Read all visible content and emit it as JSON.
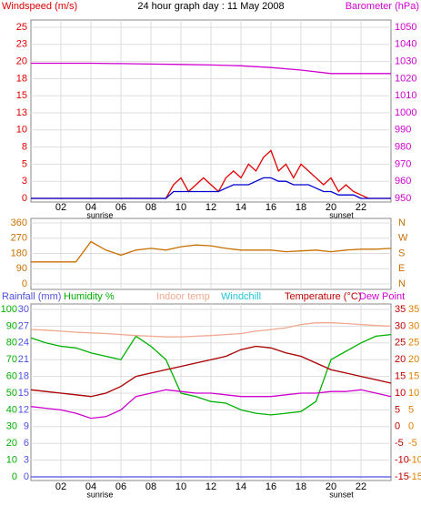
{
  "chart_data": [
    {
      "type": "line",
      "title": "24 hour graph day : 11 May 2008",
      "y_label": "Windspeed (m/s)",
      "y2_label": "Barometer (hPa)",
      "xlim": [
        0,
        24
      ],
      "xticks": [
        {
          "value": 2,
          "label": "02"
        },
        {
          "value": 4,
          "label": "04"
        },
        {
          "value": 6,
          "label": "06"
        },
        {
          "value": 8,
          "label": "08"
        },
        {
          "value": 10,
          "label": "10"
        },
        {
          "value": 12,
          "label": "12"
        },
        {
          "value": 14,
          "label": "14"
        },
        {
          "value": 16,
          "label": "16"
        },
        {
          "value": 18,
          "label": "18"
        },
        {
          "value": 20,
          "label": "20"
        },
        {
          "value": 22,
          "label": "22"
        }
      ],
      "ylim": [
        0,
        25
      ],
      "yticks": [
        0,
        {
          "value": 2.5,
          "label": "3"
        },
        5,
        {
          "value": 7.5,
          "label": "8"
        },
        10,
        {
          "value": 12.5,
          "label": "13"
        },
        15,
        {
          "value": 17.5,
          "label": "18"
        },
        20,
        {
          "value": 22.5,
          "label": "23"
        },
        25
      ],
      "y2lim": [
        950,
        1050
      ],
      "y2ticks": [
        950,
        960,
        970,
        980,
        990,
        1000,
        1010,
        1020,
        1030,
        1040,
        1050
      ],
      "grid": true,
      "annotations": [
        {
          "text": "sunrise",
          "x": 4.6
        },
        {
          "text": "sunset",
          "x": 20.7
        }
      ],
      "series": [
        {
          "color": "#e00000",
          "x": [
            0,
            0.5,
            1,
            1.5,
            2,
            2.5,
            3,
            3.5,
            4,
            4.5,
            5,
            5.5,
            6,
            6.5,
            7,
            7.5,
            8,
            8.5,
            9,
            9.5,
            10,
            10.5,
            11,
            11.5,
            12,
            12.5,
            13,
            13.5,
            14,
            14.5,
            15,
            15.5,
            16,
            16.5,
            17,
            17.5,
            18,
            18.5,
            19,
            19.5,
            20,
            20.5,
            21,
            21.5,
            22,
            22.5,
            23,
            23.5,
            24
          ],
          "values": [
            0,
            0,
            0,
            0,
            0,
            0,
            0,
            0,
            0,
            0,
            0,
            0,
            0,
            0,
            0,
            0,
            0,
            0,
            0,
            2,
            3,
            1,
            2,
            3,
            2,
            1,
            3,
            4,
            3,
            5,
            4,
            6,
            7,
            4,
            5,
            3,
            5,
            4,
            3,
            2,
            3,
            1,
            2,
            1,
            0.5,
            0,
            0,
            0,
            0
          ]
        },
        {
          "color": "#0000d0",
          "x": [
            0,
            0.5,
            1,
            1.5,
            2,
            2.5,
            3,
            3.5,
            4,
            4.5,
            5,
            5.5,
            6,
            6.5,
            7,
            7.5,
            8,
            8.5,
            9,
            9.5,
            10,
            10.5,
            11,
            11.5,
            12,
            12.5,
            13,
            13.5,
            14,
            14.5,
            15,
            15.5,
            16,
            16.5,
            17,
            17.5,
            18,
            18.5,
            19,
            19.5,
            20,
            20.5,
            21,
            21.5,
            22,
            22.5,
            23,
            23.5,
            24
          ],
          "values": [
            0,
            0,
            0,
            0,
            0,
            0,
            0,
            0,
            0,
            0,
            0,
            0,
            0,
            0,
            0,
            0,
            0,
            0,
            0,
            1,
            1,
            1,
            1,
            1,
            1,
            1,
            1.5,
            2,
            2,
            2,
            2.5,
            3,
            3,
            2.5,
            2.5,
            2,
            2,
            2,
            1.5,
            1,
            1,
            0.5,
            0.5,
            0.5,
            0,
            0,
            0,
            0,
            0
          ]
        },
        {
          "color": "#d000d0",
          "axis": "y2",
          "x": [
            0,
            2,
            4,
            6,
            8,
            10,
            12,
            14,
            16,
            18,
            20,
            22,
            24
          ],
          "values": [
            1029,
            1029,
            1029,
            1028.8,
            1028.5,
            1028.3,
            1028,
            1027.5,
            1026.5,
            1025,
            1023,
            1023,
            1023
          ]
        }
      ]
    },
    {
      "type": "line",
      "xlim": [
        0,
        24
      ],
      "ylim": [
        0,
        360
      ],
      "yticks": [
        0,
        90,
        180,
        270,
        360
      ],
      "y2lim": [
        0,
        360
      ],
      "y2ticks": [
        {
          "value": 0,
          "label": "N"
        },
        {
          "value": 90,
          "label": "E"
        },
        {
          "value": 180,
          "label": "S"
        },
        {
          "value": 270,
          "label": "W"
        },
        {
          "value": 360,
          "label": "N"
        }
      ],
      "grid": true,
      "series": [
        {
          "color": "#c87000",
          "x": [
            0,
            1,
            2,
            3,
            4,
            5,
            6,
            7,
            8,
            9,
            10,
            11,
            12,
            13,
            14,
            15,
            16,
            17,
            18,
            19,
            20,
            21,
            22,
            23,
            24
          ],
          "values": [
            130,
            130,
            130,
            130,
            250,
            200,
            170,
            200,
            210,
            200,
            220,
            230,
            225,
            210,
            200,
            200,
            200,
            190,
            195,
            200,
            190,
            200,
            205,
            205,
            210
          ]
        }
      ]
    },
    {
      "type": "line",
      "xlim": [
        0,
        24
      ],
      "xticks": [
        {
          "value": 2,
          "label": "02"
        },
        {
          "value": 4,
          "label": "04"
        },
        {
          "value": 6,
          "label": "06"
        },
        {
          "value": 8,
          "label": "08"
        },
        {
          "value": 10,
          "label": "10"
        },
        {
          "value": 12,
          "label": "12"
        },
        {
          "value": 14,
          "label": "14"
        },
        {
          "value": 16,
          "label": "16"
        },
        {
          "value": 18,
          "label": "18"
        },
        {
          "value": 20,
          "label": "20"
        },
        {
          "value": 22,
          "label": "22"
        }
      ],
      "ylim": [
        0,
        30
      ],
      "yticks": [
        0,
        3,
        6,
        9,
        12,
        15,
        18,
        21,
        24,
        27,
        30
      ],
      "y3lim": [
        0,
        100
      ],
      "y3ticks": [
        0,
        10,
        20,
        30,
        40,
        50,
        60,
        70,
        80,
        90,
        100
      ],
      "y2lim": [
        -15,
        35
      ],
      "y2ticks": [
        -15,
        -10,
        -5,
        0,
        5,
        10,
        15,
        20,
        25,
        30,
        35
      ],
      "grid": true,
      "annotations": [
        {
          "text": "sunrise",
          "x": 4.6
        },
        {
          "text": "sunset",
          "x": 20.7
        }
      ],
      "x": [
        0,
        1,
        2,
        3,
        4,
        5,
        6,
        7,
        8,
        9,
        10,
        11,
        12,
        13,
        14,
        15,
        16,
        17,
        18,
        19,
        20,
        21,
        22,
        23,
        24
      ],
      "series": [
        {
          "name": "Rainfall (mm)",
          "color": "#5050e0",
          "axis": "y",
          "values": [
            0,
            0,
            0,
            0,
            0,
            0,
            0,
            0,
            0,
            0,
            0,
            0,
            0,
            0,
            0,
            0,
            0,
            0,
            0,
            0,
            0,
            0,
            0,
            0,
            0
          ]
        },
        {
          "name": "Humidity %",
          "color": "#00b000",
          "axis": "y3",
          "values": [
            83,
            80,
            78,
            77,
            74,
            72,
            70,
            84,
            78,
            70,
            50,
            48,
            45,
            44,
            40,
            38,
            37,
            38,
            39,
            45,
            70,
            75,
            80,
            84,
            85
          ]
        },
        {
          "name": "Indoor temp",
          "color": "#f0a890",
          "axis": "y2",
          "values": [
            29,
            28.8,
            28.5,
            28.2,
            28,
            27.8,
            27.5,
            27.2,
            27,
            26.8,
            26.8,
            27,
            27.2,
            27.5,
            27.8,
            28.5,
            29,
            29.5,
            30.5,
            31,
            31,
            30.8,
            30.5,
            30.2,
            30
          ]
        },
        {
          "name": "Windchill",
          "color": "#20c8d8",
          "axis": "y2",
          "values": [
            11,
            10.5,
            10,
            9.5,
            9,
            10,
            12,
            15,
            16,
            17,
            18,
            19,
            20,
            21,
            23,
            24,
            23.5,
            22,
            21,
            19,
            17,
            16,
            15,
            14,
            13
          ]
        },
        {
          "name": "Temperature (°C)",
          "color": "#c00000",
          "axis": "y2",
          "values": [
            11,
            10.5,
            10,
            9.5,
            9,
            10,
            12,
            15,
            16,
            17,
            18,
            19,
            20,
            21,
            23,
            24,
            23.5,
            22,
            21,
            19,
            17,
            16,
            15,
            14,
            13
          ]
        },
        {
          "name": "Dew Point",
          "color": "#d000d0",
          "axis": "y2",
          "values": [
            6,
            5.5,
            5,
            4,
            2.5,
            3,
            5,
            9,
            10,
            11,
            10.5,
            10,
            10,
            9.5,
            9,
            9,
            9,
            9.5,
            10,
            10,
            10.5,
            10.5,
            11,
            10,
            9
          ]
        }
      ]
    }
  ]
}
